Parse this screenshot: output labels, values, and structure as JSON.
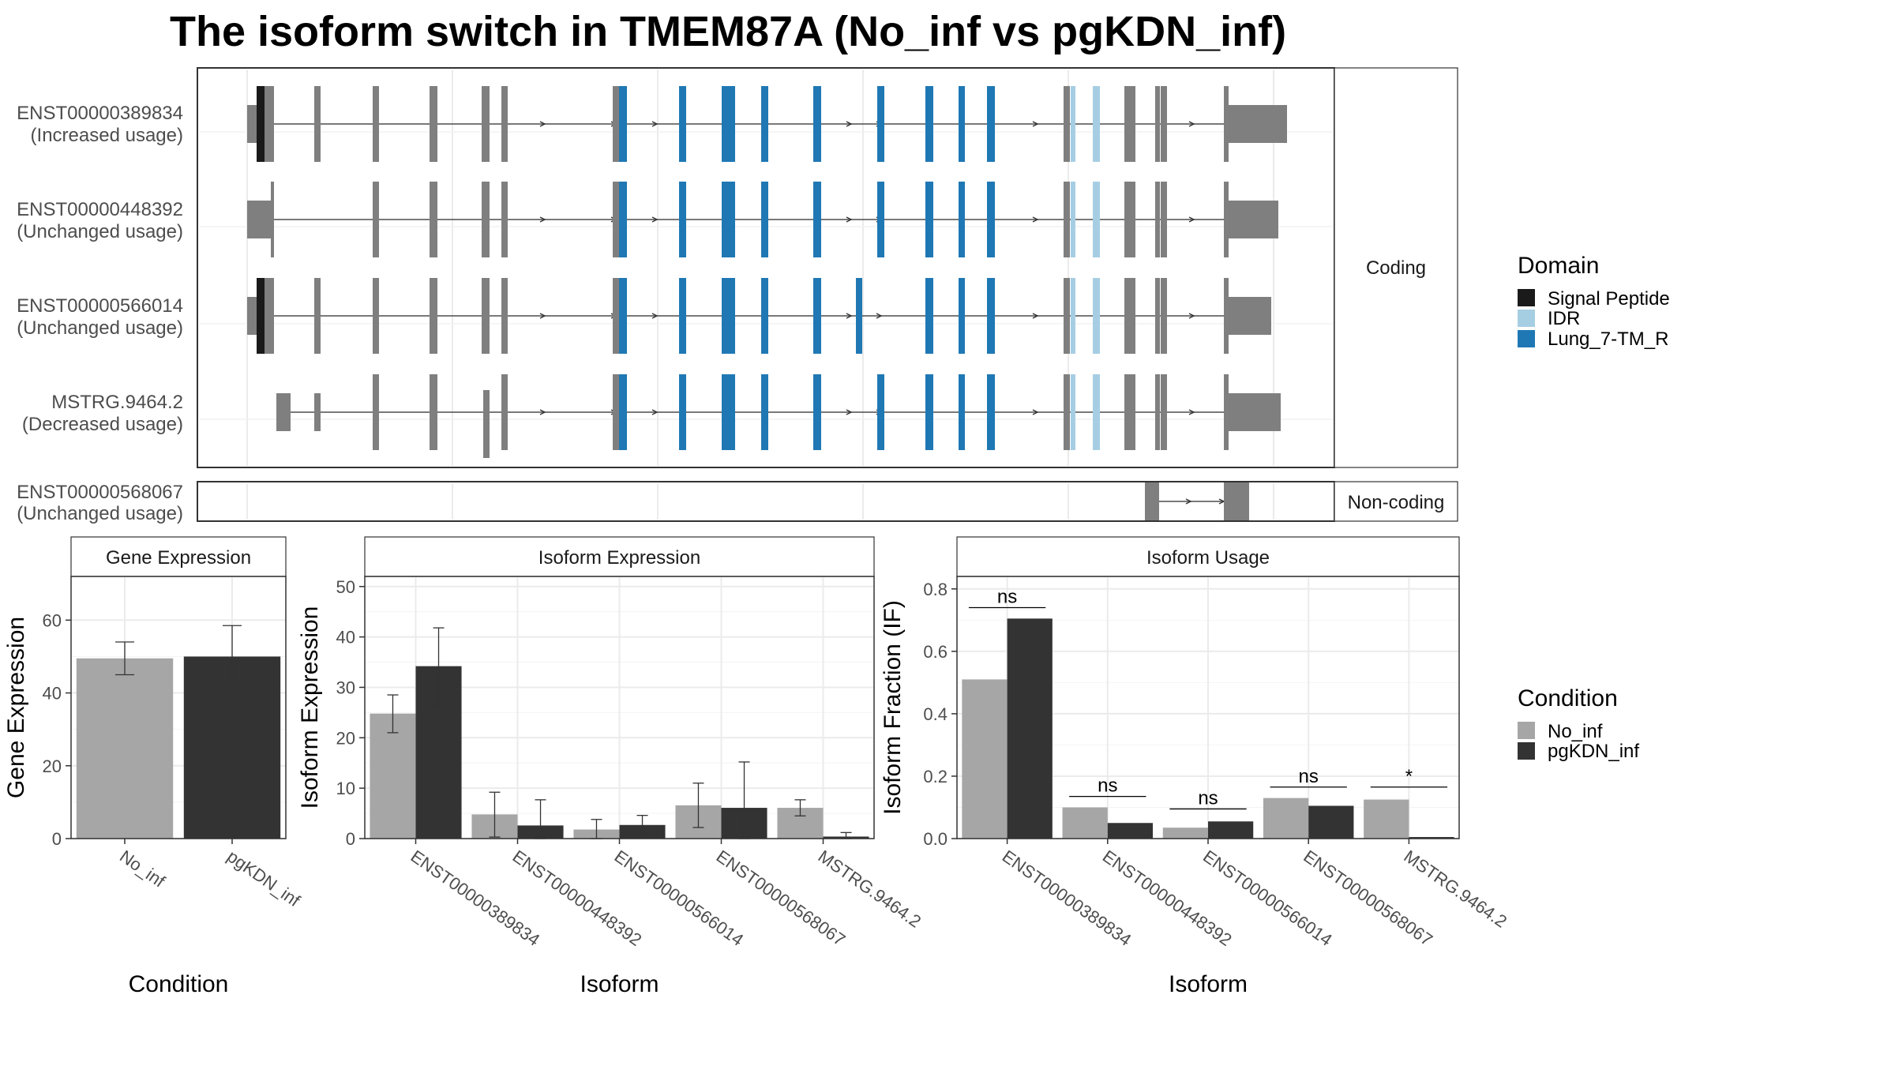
{
  "title": "The isoform switch in TMEM87A (No_inf vs pgKDN_inf)",
  "colors": {
    "exon": "#7f7f7f",
    "signal_peptide": "#1a1a1a",
    "idr": "#a6cee3",
    "lung_7tm_r": "#1f78b4",
    "no_inf": "#a6a6a6",
    "pgkdn_inf": "#333333"
  },
  "domain_legend": {
    "title": "Domain",
    "items": [
      {
        "label": "Signal Peptide",
        "color": "#1a1a1a"
      },
      {
        "label": "IDR",
        "color": "#a6cee3"
      },
      {
        "label": "Lung_7-TM_R",
        "color": "#1f78b4"
      }
    ]
  },
  "condition_legend": {
    "title": "Condition",
    "items": [
      {
        "label": "No_inf",
        "color": "#a6a6a6"
      },
      {
        "label": "pgKDN_inf",
        "color": "#333333"
      }
    ]
  },
  "structure": {
    "coding_label": "Coding",
    "noncoding_label": "Non-coding",
    "coding": [
      {
        "id": "ENST00000389834",
        "usage": "(Increased usage)"
      },
      {
        "id": "ENST00000448392",
        "usage": "(Unchanged usage)"
      },
      {
        "id": "ENST00000566014",
        "usage": "(Unchanged usage)"
      },
      {
        "id": "MSTRG.9464.2",
        "usage": "(Decreased usage)"
      }
    ],
    "noncoding": [
      {
        "id": "ENST00000568067",
        "usage": "(Unchanged usage)"
      }
    ]
  },
  "chart_data": [
    {
      "type": "bar",
      "title": "Gene Expression",
      "xlabel": "Condition",
      "ylabel": "Gene Expression",
      "ylim": [
        0,
        72
      ],
      "yticks": [
        0,
        20,
        40,
        60
      ],
      "categories": [
        "No_inf",
        "pgKDN_inf"
      ],
      "values": [
        49.5,
        50
      ],
      "errors": [
        [
          45,
          54
        ],
        [
          42,
          58.5
        ]
      ],
      "colors": [
        "#a6a6a6",
        "#333333"
      ]
    },
    {
      "type": "bar",
      "title": "Isoform Expression",
      "xlabel": "Isoform",
      "ylabel": "Isoform Expression",
      "ylim": [
        0,
        52
      ],
      "yticks": [
        0,
        10,
        20,
        30,
        40,
        50
      ],
      "categories": [
        "ENST00000389834",
        "ENST00000448392",
        "ENST00000566014",
        "ENST00000568067",
        "MSTRG.9464.2"
      ],
      "series": [
        {
          "name": "No_inf",
          "values": [
            24.8,
            4.8,
            1.8,
            6.6,
            6.1
          ],
          "errors": [
            [
              21,
              28.5
            ],
            [
              0.3,
              9.2
            ],
            [
              0,
              3.8
            ],
            [
              2.2,
              11
            ],
            [
              4.5,
              7.7
            ]
          ]
        },
        {
          "name": "pgKDN_inf",
          "values": [
            34.2,
            2.6,
            2.7,
            6.1,
            0.4
          ],
          "errors": [
            [
              26.5,
              41.8
            ],
            [
              0,
              7.7
            ],
            [
              0.8,
              4.6
            ],
            [
              0,
              15.2
            ],
            [
              0,
              1.2
            ]
          ]
        }
      ]
    },
    {
      "type": "bar",
      "title": "Isoform Usage",
      "xlabel": "Isoform",
      "ylabel": "Isoform Fraction (IF)",
      "ylim": [
        0,
        0.84
      ],
      "yticks": [
        "0.0",
        "0.2",
        "0.4",
        "0.6",
        "0.8"
      ],
      "categories": [
        "ENST00000389834",
        "ENST00000448392",
        "ENST00000566014",
        "ENST00000568067",
        "MSTRG.9464.2"
      ],
      "series": [
        {
          "name": "No_inf",
          "values": [
            0.51,
            0.1,
            0.035,
            0.13,
            0.125
          ]
        },
        {
          "name": "pgKDN_inf",
          "values": [
            0.705,
            0.05,
            0.055,
            0.105,
            0.005
          ]
        }
      ],
      "significance": [
        "ns",
        "ns",
        "ns",
        "ns",
        "*"
      ],
      "significance_line_y": [
        0.74,
        0.135,
        0.095,
        0.165,
        0.165
      ]
    }
  ]
}
